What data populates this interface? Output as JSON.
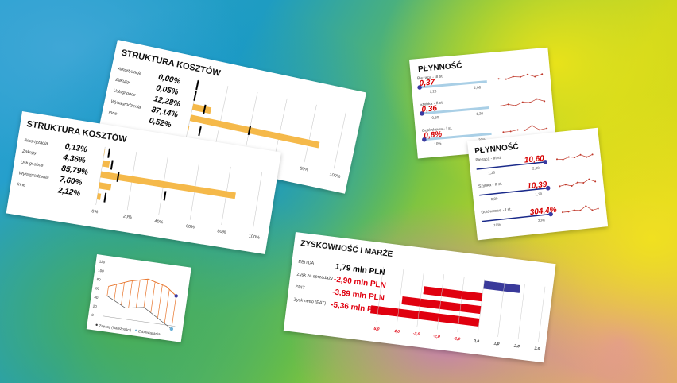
{
  "cost1": {
    "title": "STRUKTURA KOSZTÓW",
    "rows": [
      {
        "label": "Amortyzacja",
        "value": "0,00%",
        "pct": 0.0,
        "marker": 0.05
      },
      {
        "label": "Zakupy",
        "value": "0,05%",
        "pct": 0.05,
        "marker": 0.08
      },
      {
        "label": "Usługi obce",
        "value": "12,28%",
        "pct": 12.28,
        "marker": 8
      },
      {
        "label": "Wynagrodzenia",
        "value": "87,14%",
        "pct": 87.14,
        "marker": 40
      },
      {
        "label": "Inne",
        "value": "0,52%",
        "pct": 0.52,
        "marker": 8
      }
    ],
    "ticks": [
      "0%",
      "20%",
      "40%",
      "60%",
      "80%",
      "100%"
    ]
  },
  "cost2": {
    "title": "STRUKTURA KOSZTÓW",
    "rows": [
      {
        "label": "Amortyzacja",
        "value": "0,13%",
        "pct": 0.13,
        "marker": 3
      },
      {
        "label": "Zakupy",
        "value": "4,36%",
        "pct": 4.36,
        "marker": 6
      },
      {
        "label": "Usługi obce",
        "value": "85,79%",
        "pct": 85.79,
        "marker": 11
      },
      {
        "label": "Wynagrodzenia",
        "value": "7,60%",
        "pct": 7.6,
        "marker": 42
      },
      {
        "label": "Inne",
        "value": "2,12%",
        "pct": 2.12,
        "marker": 5
      }
    ],
    "ticks": [
      "0%",
      "20%",
      "40%",
      "60%",
      "80%",
      "100%"
    ]
  },
  "liq1": {
    "title": "PŁYNNOŚĆ",
    "rows": [
      {
        "label": "Bieżąca - III st.",
        "value": "0,37",
        "min": "1,20",
        "max": "2,00"
      },
      {
        "label": "Szybka - II st.",
        "value": "0,36",
        "min": "0,80",
        "max": "1,20"
      },
      {
        "label": "Gotówkowa - I st.",
        "value": "0,8%",
        "min": "10%",
        "max": "20%"
      }
    ]
  },
  "liq2": {
    "title": "PŁYNNOŚĆ",
    "rows": [
      {
        "label": "Bieżąca - III st.",
        "value": "10,60",
        "min": "1,20",
        "max": "2,00"
      },
      {
        "label": "Szybka - II st.",
        "value": "10,39",
        "min": "0,80",
        "max": "1,20"
      },
      {
        "label": "Gotówkowa - I st.",
        "value": "304,4%",
        "min": "10%",
        "max": "20%"
      }
    ]
  },
  "profit": {
    "title": "ZYSKOWNOŚĆ I MARŻE",
    "rows": [
      {
        "label": "EBITDA",
        "value": "1,79 mln PLN",
        "num": 1.79
      },
      {
        "label": "Zysk ze sprzedaży",
        "value": "-2,90 mln PLN",
        "num": -2.9
      },
      {
        "label": "EBIT",
        "value": "-3,89 mln PLN",
        "num": -3.89
      },
      {
        "label": "Zysk netto (EAT)",
        "value": "-5,36 mln PLN",
        "num": -5.36
      }
    ],
    "ticks": [
      "-5,0",
      "-4,0",
      "-3,0",
      "-2,0",
      "-1,0",
      "0,0",
      "1,0",
      "2,0",
      "3,0"
    ]
  },
  "line_chart": {
    "y_ticks": [
      "120",
      "100",
      "80",
      "60",
      "40",
      "20",
      "0"
    ],
    "legend": [
      "Zapasy (Należności)",
      "Zobowiązania"
    ]
  },
  "colors": {
    "bar": "#f5b94a",
    "negative": "#e0000f",
    "positive": "#3a3a9a",
    "marker": "#000000",
    "liquidity_value": "#d60000",
    "line_orange": "#e8742a"
  }
}
